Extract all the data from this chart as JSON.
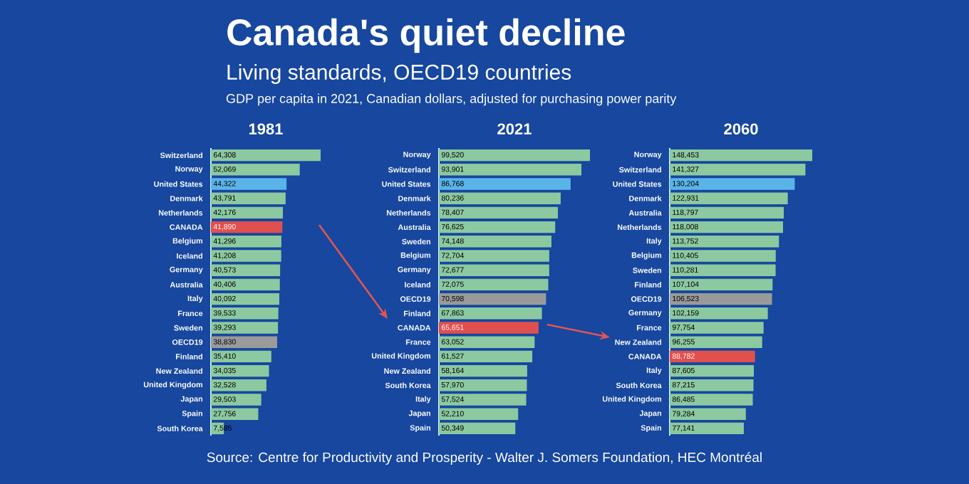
{
  "chart_data": [
    {
      "type": "other",
      "title": "Canada's quiet decline",
      "subtitle": "Living standards, OECD19 countries",
      "annotations": [
        "GDP per capita in 2021, Canadian dollars, adjusted for purchasing power parity",
        "Source: Centre for Productivity and Prosperity - Walter J. Somers Foundation, HEC Montréal"
      ]
    },
    {
      "type": "bar",
      "orientation": "horizontal",
      "title": "1981",
      "categories": [
        "Switzerland",
        "Norway",
        "United States",
        "Denmark",
        "Netherlands",
        "CANADA",
        "Belgium",
        "Iceland",
        "Germany",
        "Australia",
        "Italy",
        "France",
        "Sweden",
        "OECD19",
        "Finland",
        "New Zealand",
        "United Kingdom",
        "Japan",
        "Spain",
        "South Korea"
      ],
      "values": [
        64308,
        52069,
        44322,
        43791,
        42176,
        41890,
        41296,
        41208,
        40573,
        40406,
        40092,
        39533,
        39293,
        38830,
        35410,
        34035,
        32528,
        29503,
        27756,
        7585
      ],
      "value_labels": [
        "64,308",
        "52,069",
        "44,322",
        "43,791",
        "42,176",
        "41,890",
        "41,296",
        "41,208",
        "40,573",
        "40,406",
        "40,092",
        "39,533",
        "39,293",
        "38,830",
        "35,410",
        "34,035",
        "32,528",
        "29,503",
        "27,756",
        "7,585"
      ],
      "colors": [
        "#8cc9a0",
        "#8cc9a0",
        "#5bb4e8",
        "#8cc9a0",
        "#8cc9a0",
        "#e0504f",
        "#8cc9a0",
        "#8cc9a0",
        "#8cc9a0",
        "#8cc9a0",
        "#8cc9a0",
        "#8cc9a0",
        "#8cc9a0",
        "#9a9a9a",
        "#8cc9a0",
        "#8cc9a0",
        "#8cc9a0",
        "#8cc9a0",
        "#8cc9a0",
        "#8cc9a0"
      ]
    },
    {
      "type": "bar",
      "orientation": "horizontal",
      "title": "2021",
      "categories": [
        "Norway",
        "Switzerland",
        "United States",
        "Denmark",
        "Netherlands",
        "Australia",
        "Sweden",
        "Belgium",
        "Germany",
        "Iceland",
        "OECD19",
        "Finland",
        "CANADA",
        "France",
        "United Kingdom",
        "New Zealand",
        "South Korea",
        "Italy",
        "Japan",
        "Spain"
      ],
      "values": [
        99520,
        93901,
        86768,
        80236,
        78407,
        76625,
        74148,
        72704,
        72677,
        72075,
        70598,
        67863,
        65651,
        63052,
        61527,
        58164,
        57970,
        57524,
        52210,
        50349
      ],
      "value_labels": [
        "99,520",
        "93,901",
        "86,768",
        "80,236",
        "78,407",
        "76,625",
        "74,148",
        "72,704",
        "72,677",
        "72,075",
        "70,598",
        "67,863",
        "65,651",
        "63,052",
        "61,527",
        "58,164",
        "57,970",
        "57,524",
        "52,210",
        "50,349"
      ],
      "colors": [
        "#8cc9a0",
        "#8cc9a0",
        "#5bb4e8",
        "#8cc9a0",
        "#8cc9a0",
        "#8cc9a0",
        "#8cc9a0",
        "#8cc9a0",
        "#8cc9a0",
        "#8cc9a0",
        "#9a9a9a",
        "#8cc9a0",
        "#e0504f",
        "#8cc9a0",
        "#8cc9a0",
        "#8cc9a0",
        "#8cc9a0",
        "#8cc9a0",
        "#8cc9a0",
        "#8cc9a0"
      ]
    },
    {
      "type": "bar",
      "orientation": "horizontal",
      "title": "2060",
      "categories": [
        "Norway",
        "Switzerland",
        "United States",
        "Denmark",
        "Australia",
        "Netherlands",
        "Italy",
        "Belgium",
        "Sweden",
        "Finland",
        "OECD19",
        "Germany",
        "France",
        "New Zealand",
        "CANADA",
        "Italy",
        "South Korea",
        "United Kingdom",
        "Japan",
        "Spain"
      ],
      "values": [
        148453,
        141327,
        130204,
        122931,
        118797,
        118008,
        113752,
        110405,
        110281,
        107104,
        106523,
        102159,
        97754,
        96255,
        88782,
        87605,
        87215,
        86485,
        79284,
        77141
      ],
      "value_labels": [
        "148,453",
        "141,327",
        "130,204",
        "122,931",
        "118,797",
        "118,008",
        "113,752",
        "110,405",
        "110,281",
        "107,104",
        "106,523",
        "102,159",
        "97,754",
        "96,255",
        "88,782",
        "87,605",
        "87,215",
        "86,485",
        "79,284",
        "77,141"
      ],
      "colors": [
        "#8cc9a0",
        "#8cc9a0",
        "#5bb4e8",
        "#8cc9a0",
        "#8cc9a0",
        "#8cc9a0",
        "#8cc9a0",
        "#8cc9a0",
        "#8cc9a0",
        "#8cc9a0",
        "#9a9a9a",
        "#8cc9a0",
        "#8cc9a0",
        "#8cc9a0",
        "#e0504f",
        "#8cc9a0",
        "#8cc9a0",
        "#8cc9a0",
        "#8cc9a0",
        "#8cc9a0"
      ]
    }
  ]
}
